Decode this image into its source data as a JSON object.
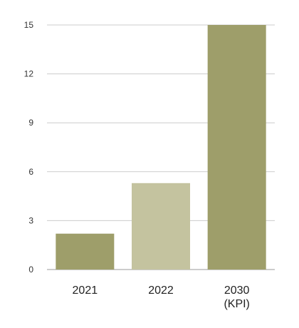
{
  "chart_data": {
    "type": "bar",
    "categories": [
      [
        "2021"
      ],
      [
        "2022"
      ],
      [
        "2030",
        "(KPI)"
      ]
    ],
    "values": [
      2.2,
      5.3,
      15
    ],
    "yticks": [
      0,
      3,
      6,
      9,
      12,
      15
    ],
    "ylim": [
      0,
      15
    ],
    "grid": true,
    "bar_colors": [
      "#9e9e6a",
      "#c4c39f",
      "#9e9e6a"
    ],
    "gridline_color": "#cccccc",
    "axis_color": "#999999"
  }
}
